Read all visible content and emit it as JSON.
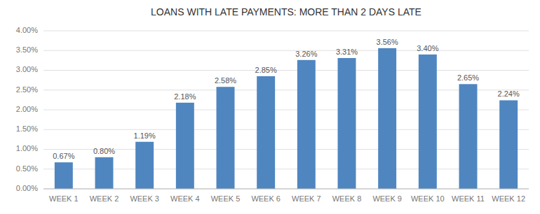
{
  "chart_data": {
    "type": "bar",
    "title": "LOANS WITH LATE PAYMENTS: MORE THAN 2 DAYS LATE",
    "categories": [
      "WEEK 1",
      "WEEK 2",
      "WEEK 3",
      "WEEK 4",
      "WEEK 5",
      "WEEK 6",
      "WEEK 7",
      "WEEK 8",
      "WEEK 9",
      "WEEK 10",
      "WEEK 11",
      "WEEK 12"
    ],
    "values": [
      0.67,
      0.8,
      1.19,
      2.18,
      2.58,
      2.85,
      3.26,
      3.31,
      3.56,
      3.4,
      2.65,
      2.24
    ],
    "value_labels": [
      "0.67%",
      "0.80%",
      "1.19%",
      "2.18%",
      "2.58%",
      "2.85%",
      "3.26%",
      "3.31%",
      "3.56%",
      "3.40%",
      "2.65%",
      "2.24%"
    ],
    "color": "#4F86C0",
    "ylim": [
      0.0,
      4.0
    ],
    "yticks": [
      {
        "value": 0.0,
        "label": "0.00%"
      },
      {
        "value": 0.5,
        "label": "0.50%"
      },
      {
        "value": 1.0,
        "label": "1.00%"
      },
      {
        "value": 1.5,
        "label": "1.50%"
      },
      {
        "value": 2.0,
        "label": "2.00%"
      },
      {
        "value": 2.5,
        "label": "2.50%"
      },
      {
        "value": 3.0,
        "label": "3.00%"
      },
      {
        "value": 3.5,
        "label": "3.50%"
      },
      {
        "value": 4.0,
        "label": "4.00%"
      }
    ],
    "grid": true,
    "data_labels": true
  }
}
